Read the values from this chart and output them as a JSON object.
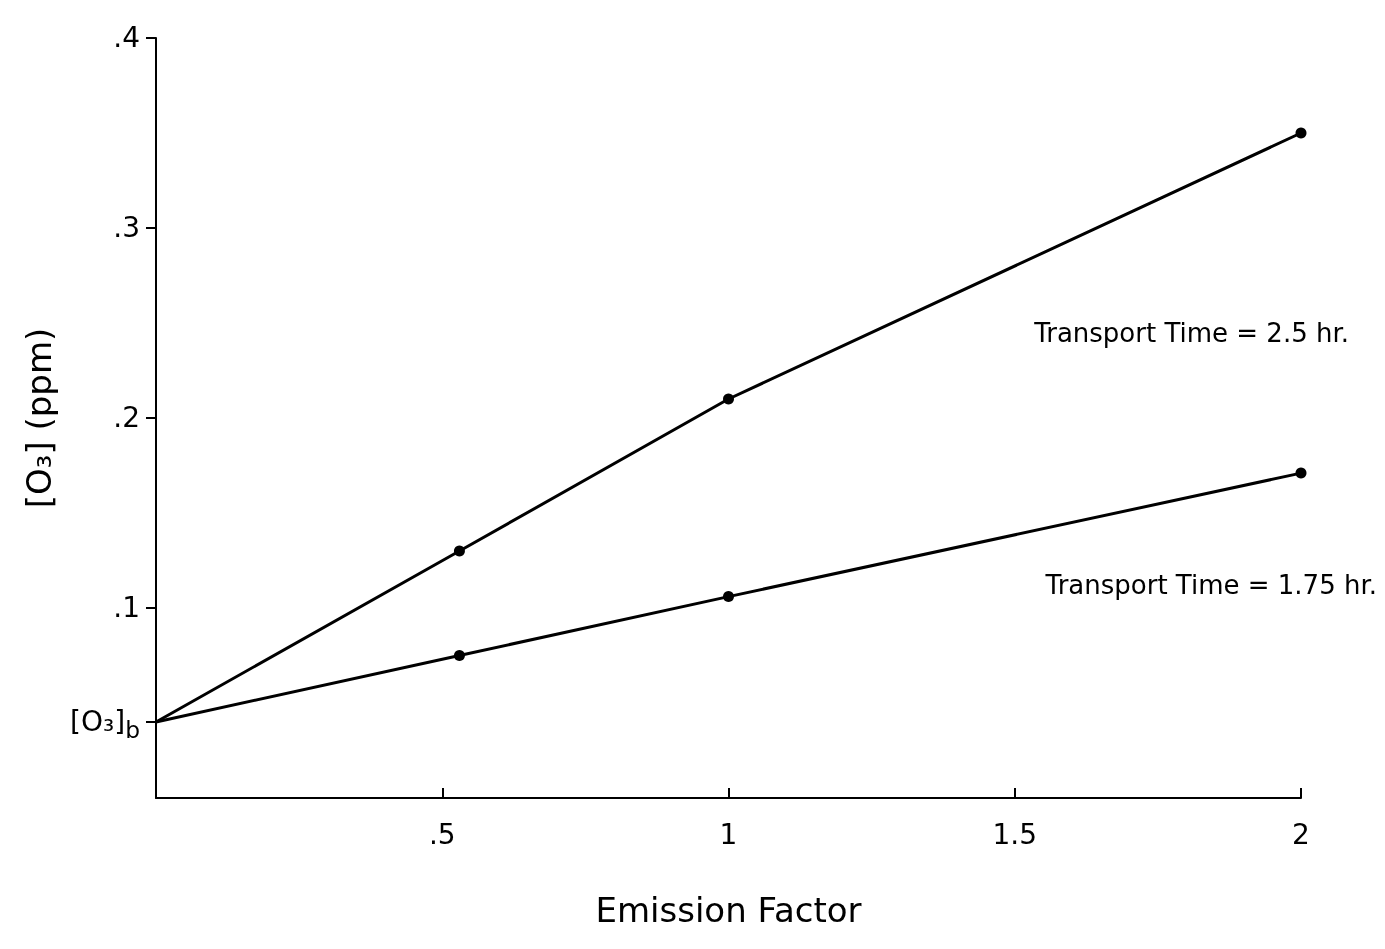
{
  "chart_data": {
    "type": "line",
    "xlabel": "Emission Factor",
    "ylabel": "[O₃] (ppm)",
    "xlim": [
      0,
      2
    ],
    "xticks": [
      {
        "value": 0.5,
        "label": ".5"
      },
      1,
      1.5,
      2
    ],
    "ylim": [
      0,
      0.4
    ],
    "yticks": [
      {
        "value": 0.04,
        "label": "[O₃]$_{b}$"
      },
      {
        "value": 0.1,
        "label": ".1"
      },
      {
        "value": 0.2,
        "label": ".2"
      },
      {
        "value": 0.3,
        "label": ".3"
      },
      {
        "value": 0.4,
        "label": ".4"
      }
    ],
    "x": [
      0,
      0.53,
      1,
      2
    ],
    "series": [
      {
        "name": "Transport Time = 2.5 hr.",
        "color": "#000000",
        "values": [
          0.04,
          0.13,
          0.21,
          0.35
        ]
      },
      {
        "name": "Transport Time = 1.75 hr.",
        "color": "#000000",
        "values": [
          0.04,
          0.075,
          0.106,
          0.171
        ]
      }
    ],
    "marker": "circle",
    "line_style": "solid",
    "grid": false,
    "legend": false
  }
}
